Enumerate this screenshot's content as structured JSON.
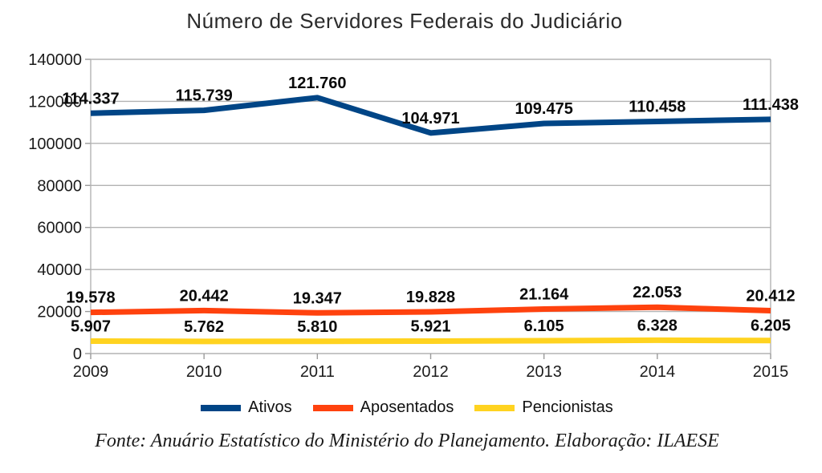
{
  "title": "Número de Servidores Federais do Judiciário",
  "footer": "Fonte: Anuário Estatístico do Ministério do Planejamento. Elaboração: ILAESE",
  "colors": {
    "grid": "#b3b3b3",
    "axis": "#b3b3b3",
    "tick": "#9a9a9a",
    "axis_text": "#1c1c1c",
    "data_label": "#0a0a0a",
    "title_text": "#2b2b2b"
  },
  "chart_data": {
    "type": "line",
    "title": "Número de Servidores Federais do Judiciário",
    "xlabel": "",
    "ylabel": "",
    "categories": [
      "2009",
      "2010",
      "2011",
      "2012",
      "2013",
      "2014",
      "2015"
    ],
    "series": [
      {
        "name": "Ativos",
        "color": "#004586",
        "values": [
          114337,
          115739,
          121760,
          104971,
          109475,
          110458,
          111438
        ],
        "labels": [
          "114.337",
          "115.739",
          "121.760",
          "104.971",
          "109.475",
          "110.458",
          "111.438"
        ]
      },
      {
        "name": "Aposentados",
        "color": "#FF420E",
        "values": [
          19578,
          20442,
          19347,
          19828,
          21164,
          22053,
          20412
        ],
        "labels": [
          "19.578",
          "20.442",
          "19.347",
          "19.828",
          "21.164",
          "22.053",
          "20.412"
        ]
      },
      {
        "name": "Pencionistas",
        "color": "#FFD320",
        "values": [
          5907,
          5762,
          5810,
          5921,
          6105,
          6328,
          6205
        ],
        "labels": [
          "5.907",
          "5.762",
          "5.810",
          "5.921",
          "6.105",
          "6.328",
          "6.205"
        ]
      }
    ],
    "ylim": [
      0,
      140000
    ],
    "y_ticks": [
      0,
      20000,
      40000,
      60000,
      80000,
      100000,
      120000,
      140000
    ],
    "grid": true,
    "legend_position": "bottom",
    "source_note": "Fonte: Anuário Estatístico do Ministério do Planejamento. Elaboração: ILAESE"
  }
}
